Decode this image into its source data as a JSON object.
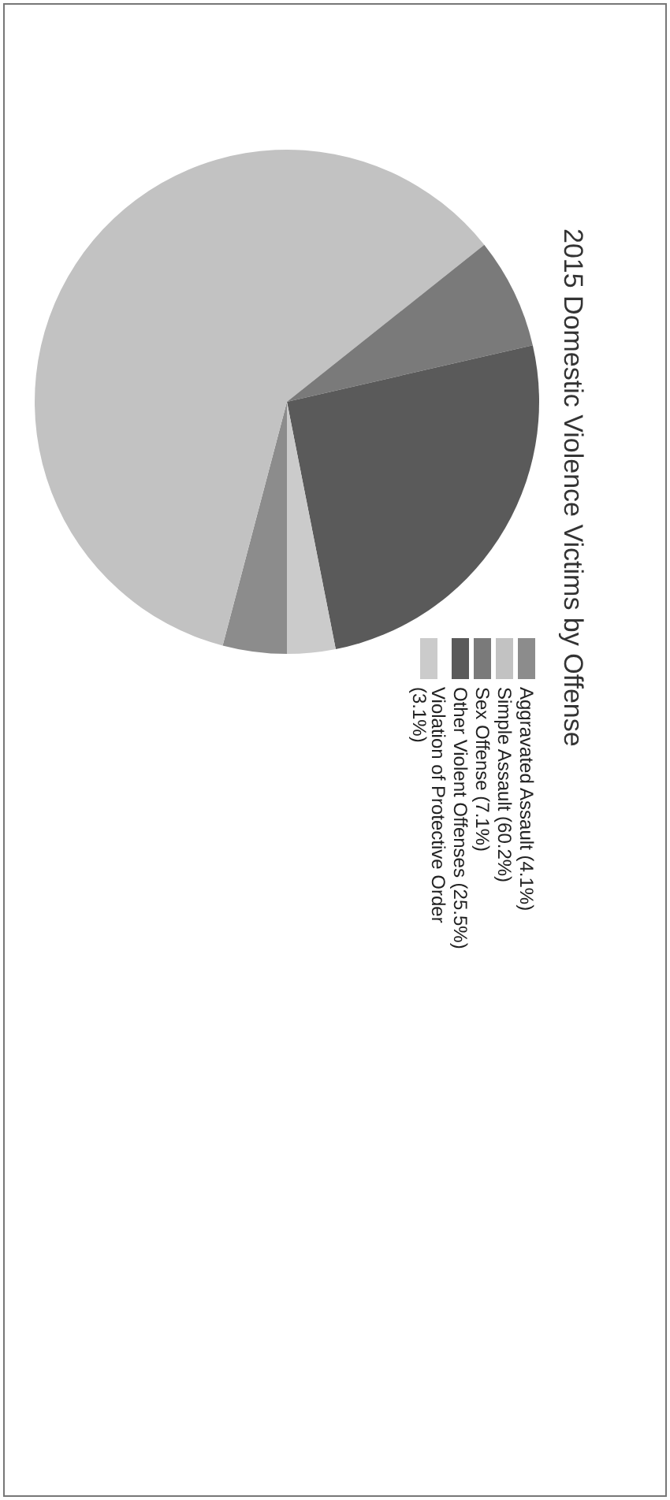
{
  "chart_data": {
    "type": "pie",
    "title": "2015 Domestic Violence Victims by Offense",
    "categories": [
      "Aggravated Assault (4.1%)",
      "Simple Assault (60.2%)",
      "Sex Offense (7.1%)",
      "Other Violent Offenses (25.5%)",
      "Violation of Protective Order (3.1%)"
    ],
    "values": [
      4.1,
      60.2,
      7.1,
      25.5,
      3.1
    ],
    "colors": [
      "#8c8c8c",
      "#c2c2c2",
      "#7a7a7a",
      "#5a5a5a",
      "#cbcbcb"
    ],
    "legend": "right"
  }
}
